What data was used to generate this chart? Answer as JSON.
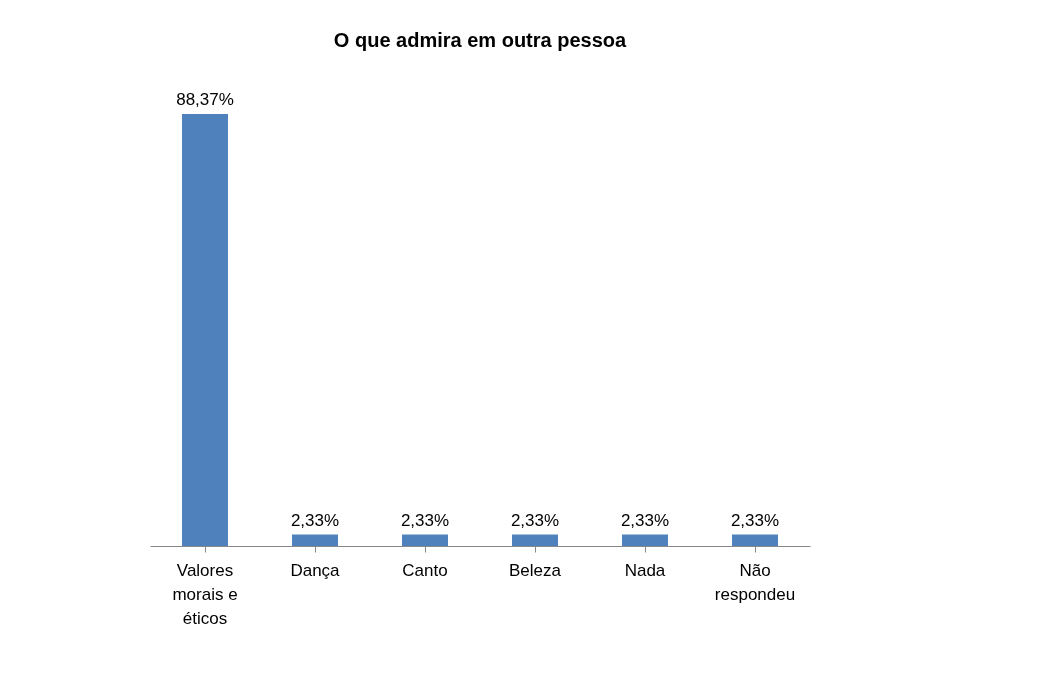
{
  "chart_data": {
    "type": "bar",
    "title": "O que admira em outra pessoa",
    "categories": [
      "Valores morais e éticos",
      "Dança",
      "Canto",
      "Beleza",
      "Nada",
      "Não respondeu"
    ],
    "values": [
      88.37,
      2.33,
      2.33,
      2.33,
      2.33,
      2.33
    ],
    "value_labels": [
      "88,37%",
      "2,33%",
      "2,33%",
      "2,33%",
      "2,33%",
      "2,33%"
    ],
    "color": "#4f81bd",
    "grid": false
  }
}
